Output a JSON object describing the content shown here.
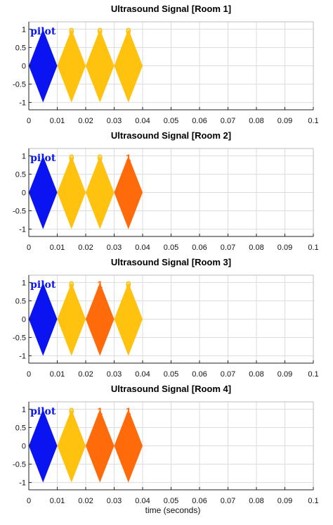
{
  "colors": {
    "pilot": "#0a14f0",
    "bit0": "#ffc20e",
    "bit1": "#ff6a0a"
  },
  "xlabel": "time (seconds)",
  "chart_data": [
    {
      "type": "area",
      "title": "Ultrasound Signal [Room 1]",
      "xlim": [
        0,
        0.1
      ],
      "ylim": [
        -1.2,
        1.2
      ],
      "xticks": [
        0,
        0.01,
        0.02,
        0.03,
        0.04,
        0.05,
        0.06,
        0.07,
        0.08,
        0.09,
        0.1
      ],
      "xticklabels": [
        "0",
        "0.01",
        "0.02",
        "0.03",
        "0.04",
        "0.05",
        "0.06",
        "0.07",
        "0.08",
        "0.09",
        "0.1"
      ],
      "yticks": [
        1,
        0.5,
        0,
        -0.5,
        -1
      ],
      "yticklabels": [
        "1",
        "0.5",
        "0",
        "-0.5",
        "-1"
      ],
      "grid": true,
      "symbols": [
        {
          "label": "pilot",
          "kind": "pilot",
          "start": 0.0,
          "end": 0.01,
          "amplitude": 1
        },
        {
          "label": "0",
          "kind": "bit0",
          "start": 0.01,
          "end": 0.02,
          "amplitude": 1
        },
        {
          "label": "0",
          "kind": "bit0",
          "start": 0.02,
          "end": 0.03,
          "amplitude": 1
        },
        {
          "label": "0",
          "kind": "bit0",
          "start": 0.03,
          "end": 0.04,
          "amplitude": 1
        }
      ]
    },
    {
      "type": "area",
      "title": "Ultrasound Signal [Room 2]",
      "xlim": [
        0,
        0.1
      ],
      "ylim": [
        -1.2,
        1.2
      ],
      "xticks": [
        0,
        0.01,
        0.02,
        0.03,
        0.04,
        0.05,
        0.06,
        0.07,
        0.08,
        0.09,
        0.1
      ],
      "xticklabels": [
        "0",
        "0.01",
        "0.02",
        "0.03",
        "0.04",
        "0.05",
        "0.06",
        "0.07",
        "0.08",
        "0.09",
        "0.1"
      ],
      "yticks": [
        1,
        0.5,
        0,
        -0.5,
        -1
      ],
      "yticklabels": [
        "1",
        "0.5",
        "0",
        "-0.5",
        "-1"
      ],
      "grid": true,
      "symbols": [
        {
          "label": "pilot",
          "kind": "pilot",
          "start": 0.0,
          "end": 0.01,
          "amplitude": 1
        },
        {
          "label": "0",
          "kind": "bit0",
          "start": 0.01,
          "end": 0.02,
          "amplitude": 1
        },
        {
          "label": "0",
          "kind": "bit0",
          "start": 0.02,
          "end": 0.03,
          "amplitude": 1
        },
        {
          "label": "1",
          "kind": "bit1",
          "start": 0.03,
          "end": 0.04,
          "amplitude": 1
        }
      ]
    },
    {
      "type": "area",
      "title": "Ultrasound Signal [Room 3]",
      "xlim": [
        0,
        0.1
      ],
      "ylim": [
        -1.2,
        1.2
      ],
      "xticks": [
        0,
        0.01,
        0.02,
        0.03,
        0.04,
        0.05,
        0.06,
        0.07,
        0.08,
        0.09,
        0.1
      ],
      "xticklabels": [
        "0",
        "0.01",
        "0.02",
        "0.03",
        "0.04",
        "0.05",
        "0.06",
        "0.07",
        "0.08",
        "0.09",
        "0.1"
      ],
      "yticks": [
        1,
        0.5,
        0,
        -0.5,
        -1
      ],
      "yticklabels": [
        "1",
        "0.5",
        "0",
        "-0.5",
        "-1"
      ],
      "grid": true,
      "symbols": [
        {
          "label": "pilot",
          "kind": "pilot",
          "start": 0.0,
          "end": 0.01,
          "amplitude": 1
        },
        {
          "label": "0",
          "kind": "bit0",
          "start": 0.01,
          "end": 0.02,
          "amplitude": 1
        },
        {
          "label": "1",
          "kind": "bit1",
          "start": 0.02,
          "end": 0.03,
          "amplitude": 1
        },
        {
          "label": "0",
          "kind": "bit0",
          "start": 0.03,
          "end": 0.04,
          "amplitude": 1
        }
      ]
    },
    {
      "type": "area",
      "title": "Ultrasound Signal [Room 4]",
      "xlim": [
        0,
        0.1
      ],
      "ylim": [
        -1.2,
        1.2
      ],
      "xticks": [
        0,
        0.01,
        0.02,
        0.03,
        0.04,
        0.05,
        0.06,
        0.07,
        0.08,
        0.09,
        0.1
      ],
      "xticklabels": [
        "0",
        "0.01",
        "0.02",
        "0.03",
        "0.04",
        "0.05",
        "0.06",
        "0.07",
        "0.08",
        "0.09",
        "0.1"
      ],
      "yticks": [
        1,
        0.5,
        0,
        -0.5,
        -1
      ],
      "yticklabels": [
        "1",
        "0.5",
        "0",
        "-0.5",
        "-1"
      ],
      "grid": true,
      "symbols": [
        {
          "label": "pilot",
          "kind": "pilot",
          "start": 0.0,
          "end": 0.01,
          "amplitude": 1
        },
        {
          "label": "0",
          "kind": "bit0",
          "start": 0.01,
          "end": 0.02,
          "amplitude": 1
        },
        {
          "label": "1",
          "kind": "bit1",
          "start": 0.02,
          "end": 0.03,
          "amplitude": 1
        },
        {
          "label": "1",
          "kind": "bit1",
          "start": 0.03,
          "end": 0.04,
          "amplitude": 1
        }
      ]
    }
  ]
}
